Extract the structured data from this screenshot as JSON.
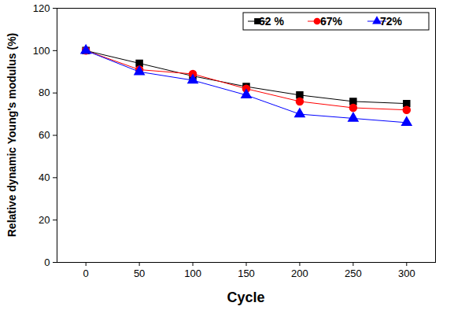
{
  "chart_data": {
    "type": "line",
    "x_label": "Cycle",
    "y_label": "Relative dynamic Young's modulus (%)",
    "x": [
      0,
      50,
      100,
      150,
      200,
      250,
      300
    ],
    "series": [
      {
        "name": "62 %",
        "color": "#000000",
        "marker": "square",
        "values": [
          100,
          94,
          88,
          83,
          79,
          76,
          75
        ]
      },
      {
        "name": "67%",
        "color": "#ff0000",
        "marker": "circle",
        "values": [
          100,
          91,
          89,
          82,
          76,
          73,
          72
        ]
      },
      {
        "name": "72%",
        "color": "#0000ff",
        "marker": "triangle",
        "values": [
          100,
          90,
          86,
          79,
          70,
          68,
          66
        ]
      }
    ],
    "xlim": [
      -27,
      327
    ],
    "xticks": [
      0,
      50,
      100,
      150,
      200,
      250,
      300
    ],
    "ylim": [
      0,
      120
    ],
    "yticks": [
      0,
      20,
      40,
      60,
      80,
      100,
      120
    ],
    "grid": false,
    "legend": "top-right"
  }
}
